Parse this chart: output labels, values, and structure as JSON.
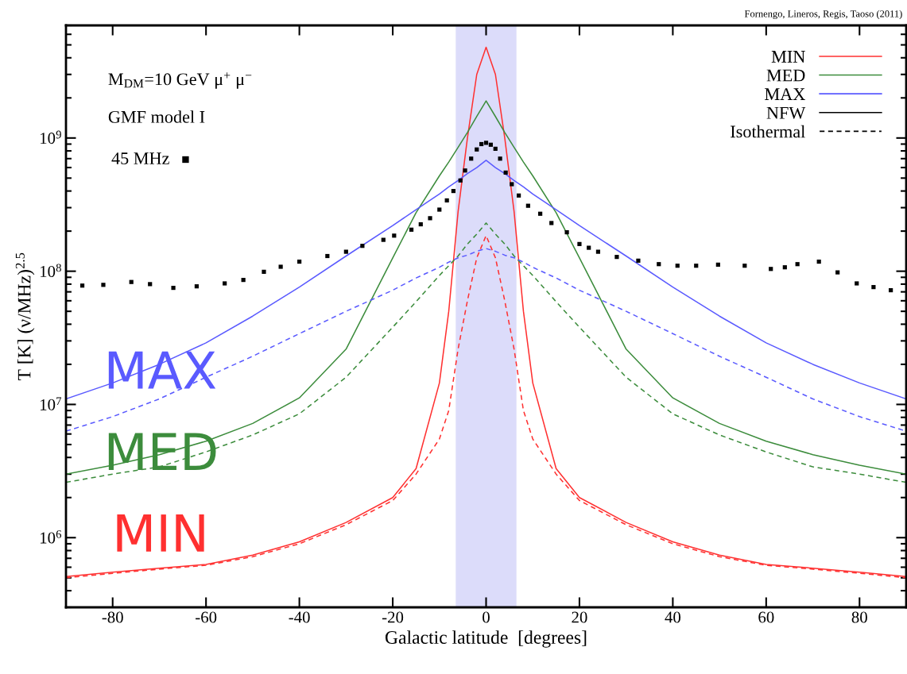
{
  "chart_data": {
    "type": "line",
    "xlabel": "Galactic latitude  [degrees]",
    "ylabel": "T [K] (ν/MHz)$^{2.5}$",
    "annotations": [
      "Fornengo, Lineros, Regis, Taoso (2011)",
      "M$_{DM}$=10 GeV μ$^{+}$ μ$^{−}$",
      "GMF model I",
      "NFW",
      "Isothermal",
      "MAX",
      "MED",
      "MIN"
    ],
    "x": [
      -90,
      -80,
      -70,
      -60,
      -50,
      -40,
      -30,
      -20,
      -15,
      -10,
      -8,
      -6,
      -4,
      -2,
      0,
      2,
      4,
      6,
      8,
      10,
      15,
      20,
      30,
      40,
      50,
      60,
      70,
      80,
      90
    ],
    "series": [
      {
        "name": "MIN",
        "color": "#ff3030",
        "line_style": "solid",
        "values": [
          510000.0,
          550000.0,
          590000.0,
          630000.0,
          740000.0,
          930000.0,
          1300000.0,
          2000000.0,
          3300000.0,
          14500000.0,
          50000000.0,
          280000000.0,
          1000000000.0,
          3000000000.0,
          4800000000.0,
          3000000000.0,
          1000000000.0,
          280000000.0,
          50000000.0,
          14500000.0,
          3300000.0,
          2000000.0,
          1300000.0,
          930000.0,
          740000.0,
          630000.0,
          590000.0,
          550000.0,
          510000.0
        ]
      },
      {
        "name": "MED",
        "color": "#3c8c3c",
        "line_style": "solid",
        "values": [
          3000000.0,
          3500000.0,
          4200000.0,
          5300000.0,
          7200000.0,
          11200000.0,
          26000000.0,
          126000000.0,
          275000000.0,
          520000000.0,
          660000000.0,
          850000000.0,
          1100000000.0,
          1450000000.0,
          1900000000.0,
          1450000000.0,
          1100000000.0,
          850000000.0,
          660000000.0,
          520000000.0,
          275000000.0,
          126000000.0,
          26000000.0,
          11200000.0,
          7200000.0,
          5300000.0,
          4200000.0,
          3500000.0,
          3000000.0
        ]
      },
      {
        "name": "MAX",
        "color": "#5a5aff",
        "line_style": "solid",
        "values": [
          11000000.0,
          14500000.0,
          20000000.0,
          29000000.0,
          46000000.0,
          76000000.0,
          130000000.0,
          220000000.0,
          290000000.0,
          380000000.0,
          430000000.0,
          480000000.0,
          540000000.0,
          600000000.0,
          680000000.0,
          600000000.0,
          540000000.0,
          480000000.0,
          430000000.0,
          380000000.0,
          290000000.0,
          220000000.0,
          130000000.0,
          76000000.0,
          46000000.0,
          29000000.0,
          20000000.0,
          14500000.0,
          11000000.0
        ]
      },
      {
        "color": "#ff3030",
        "line_style": "dashed",
        "values": [
          500000.0,
          540000.0,
          580000.0,
          620000.0,
          720000.0,
          900000.0,
          1250000.0,
          1900000.0,
          3000000.0,
          5500000.0,
          9000000.0,
          26000000.0,
          60000000.0,
          126000000.0,
          185000000.0,
          126000000.0,
          60000000.0,
          26000000.0,
          9000000.0,
          5500000.0,
          3000000.0,
          1900000.0,
          1250000.0,
          900000.0,
          720000.0,
          620000.0,
          580000.0,
          540000.0,
          500000.0
        ]
      },
      {
        "color": "#3c8c3c",
        "line_style": "dashed",
        "values": [
          2600000.0,
          3000000.0,
          3400000.0,
          4400000.0,
          5900000.0,
          8500000.0,
          16000000.0,
          38000000.0,
          59000000.0,
          93000000.0,
          110000000.0,
          130000000.0,
          160000000.0,
          190000000.0,
          230000000.0,
          190000000.0,
          160000000.0,
          130000000.0,
          110000000.0,
          93000000.0,
          59000000.0,
          38000000.0,
          16000000.0,
          8500000.0,
          5900000.0,
          4400000.0,
          3400000.0,
          3000000.0,
          2600000.0
        ]
      },
      {
        "color": "#5a5aff",
        "line_style": "dashed",
        "values": [
          6300000.0,
          8100000.0,
          11000000.0,
          16000000.0,
          23000000.0,
          34000000.0,
          50000000.0,
          72000000.0,
          89000000.0,
          107000000.0,
          117000000.0,
          126000000.0,
          132000000.0,
          141000000.0,
          148000000.0,
          141000000.0,
          132000000.0,
          126000000.0,
          117000000.0,
          107000000.0,
          89000000.0,
          72000000.0,
          50000000.0,
          34000000.0,
          23000000.0,
          16000000.0,
          11000000.0,
          8100000.0,
          6300000.0
        ]
      },
      {
        "name": "45 MHz",
        "type": "scatter",
        "color": "#000000",
        "marker": "square",
        "x": [
          -86.5,
          -82,
          -76,
          -72,
          -67,
          -62,
          -56,
          -52,
          -47.6,
          -44,
          -40,
          -34,
          -30,
          -26.5,
          -22,
          -19.7,
          -16,
          -14,
          -12,
          -10,
          -8.4,
          -7,
          -5.5,
          -4.5,
          -3.2,
          -2,
          -1,
          0,
          1,
          2,
          3,
          4.2,
          5.5,
          7,
          9,
          11.6,
          14,
          17.3,
          20,
          22,
          24,
          28,
          32.6,
          37,
          41,
          45,
          49.7,
          55.4,
          61,
          64,
          66.7,
          71.3,
          75.3,
          79.4,
          83,
          86.7
        ],
        "values": [
          78000000.0,
          79000000.0,
          83000000.0,
          80000000.0,
          75000000.0,
          77000000.0,
          81000000.0,
          86000000.0,
          99000000.0,
          108000000.0,
          118000000.0,
          130000000.0,
          140000000.0,
          155000000.0,
          172000000.0,
          185000000.0,
          205000000.0,
          225000000.0,
          250000000.0,
          290000000.0,
          340000000.0,
          400000000.0,
          480000000.0,
          570000000.0,
          700000000.0,
          820000000.0,
          900000000.0,
          920000000.0,
          890000000.0,
          830000000.0,
          700000000.0,
          550000000.0,
          450000000.0,
          370000000.0,
          310000000.0,
          270000000.0,
          230000000.0,
          196000000.0,
          160000000.0,
          150000000.0,
          140000000.0,
          128000000.0,
          120000000.0,
          113000000.0,
          110000000.0,
          110000000.0,
          112000000.0,
          110000000.0,
          104000000.0,
          107000000.0,
          113000000.0,
          118000000.0,
          98000000.0,
          81000000.0,
          76000000.0,
          72000000.0
        ]
      }
    ],
    "bands": [
      {
        "axis": "x",
        "from": -6.5,
        "to": 6.5,
        "color": "#dcdcfa"
      }
    ],
    "log": "y",
    "xlim": [
      -90,
      90
    ],
    "xticks": [
      -80,
      -60,
      -40,
      -20,
      0,
      20,
      40,
      60,
      80
    ],
    "ylim": [
      300000.0,
      7000000000.0
    ],
    "yticks": [
      {
        "value": 1000000.0,
        "label": "10$^{6}$"
      },
      {
        "value": 10000000.0,
        "label": "10$^{7}$"
      },
      {
        "value": 100000000.0,
        "label": "10$^{8}$"
      },
      {
        "value": 1000000000.0,
        "label": "10$^{9}$"
      }
    ],
    "grid": false,
    "legend": "top right"
  }
}
